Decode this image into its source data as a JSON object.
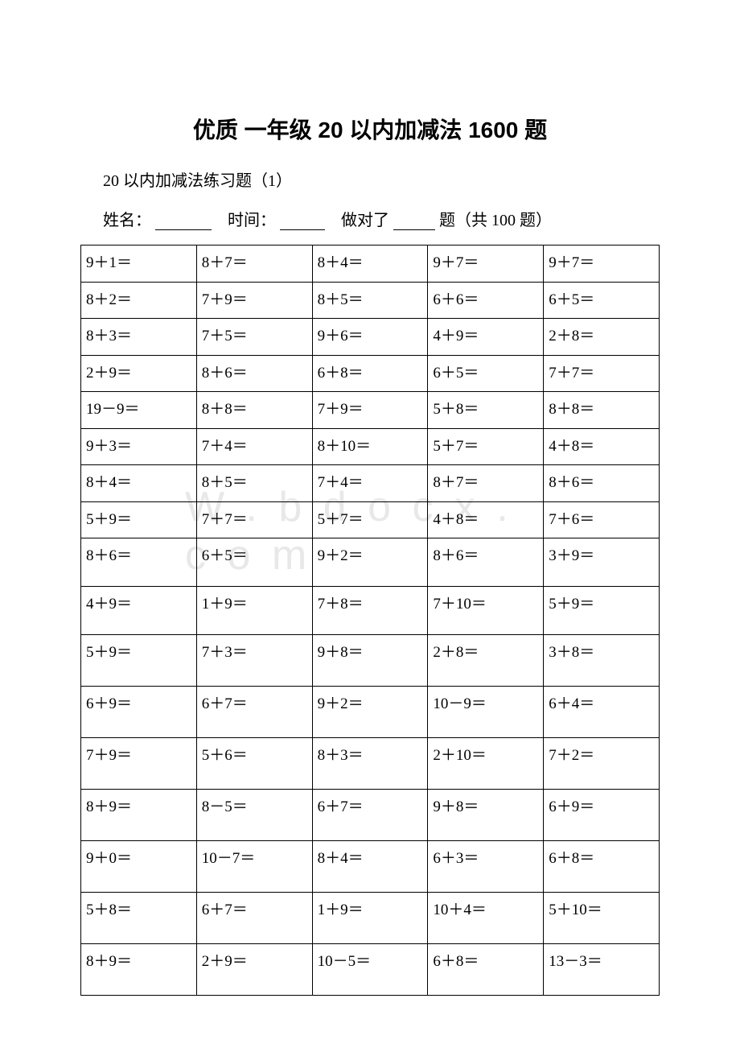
{
  "page": {
    "title": "优质 一年级 20 以内加减法 1600 题",
    "subtitle": "20 以内加减法练习题（1）",
    "label_name": "姓名：",
    "label_time": "时间：",
    "label_score_prefix": "做对了",
    "label_score_suffix": "题（共 100 题）",
    "watermark": "W . b d o c x . c o m"
  },
  "table": {
    "rows": [
      [
        "9＋1＝",
        "8＋7＝",
        "8＋4＝",
        "9＋7＝",
        "9＋7＝"
      ],
      [
        "8＋2＝",
        "7＋9＝",
        "8＋5＝",
        "6＋6＝",
        "6＋5＝"
      ],
      [
        "8＋3＝",
        "7＋5＝",
        "9＋6＝",
        "4＋9＝",
        "2＋8＝"
      ],
      [
        "2＋9＝",
        "8＋6＝",
        "6＋8＝",
        "6＋5＝",
        "7＋7＝"
      ],
      [
        "19－9＝",
        "8＋8＝",
        "7＋9＝",
        "5＋8＝",
        "8＋8＝"
      ],
      [
        "9＋3＝",
        "7＋4＝",
        "8＋10＝",
        "5＋7＝",
        "4＋8＝"
      ],
      [
        "8＋4＝",
        "8＋5＝",
        "7＋4＝",
        "8＋7＝",
        "8＋6＝"
      ],
      [
        "5＋9＝",
        "7＋7＝",
        "5＋7＝",
        "4＋8＝",
        "7＋6＝"
      ],
      [
        "8＋6＝",
        "6＋5＝",
        "9＋2＝",
        "8＋6＝",
        "3＋9＝"
      ],
      [
        "4＋9＝",
        "1＋9＝",
        "7＋8＝",
        "7＋10＝",
        "5＋9＝"
      ],
      [
        "5＋9＝",
        "7＋3＝",
        "9＋8＝",
        "2＋8＝",
        "3＋8＝"
      ],
      [
        "6＋9＝",
        "6＋7＝",
        "9＋2＝",
        "10－9＝",
        "6＋4＝"
      ],
      [
        "7＋9＝",
        "5＋6＝",
        "8＋3＝",
        "2＋10＝",
        "7＋2＝"
      ],
      [
        "8＋9＝",
        "8－5＝",
        "6＋7＝",
        "9＋8＝",
        "6＋9＝"
      ],
      [
        "9＋0＝",
        "10－7＝",
        "8＋4＝",
        "6＋3＝",
        "6＋8＝"
      ],
      [
        "5＋8＝",
        "6＋7＝",
        "1＋9＝",
        "10＋4＝",
        "5＋10＝"
      ],
      [
        "8＋9＝",
        "2＋9＝",
        "10－5＝",
        "6＋8＝",
        "13－3＝"
      ]
    ],
    "row_heights": [
      "",
      "",
      "",
      "",
      "",
      "",
      "",
      "",
      "tall",
      "tall",
      "taller",
      "taller",
      "taller",
      "taller",
      "taller",
      "taller",
      "taller"
    ]
  },
  "style": {
    "background_color": "#ffffff",
    "text_color": "#000000",
    "border_color": "#000000",
    "title_fontsize": 28,
    "body_fontsize": 20,
    "cell_fontsize": 19,
    "watermark_color": "#e8e8e8"
  }
}
